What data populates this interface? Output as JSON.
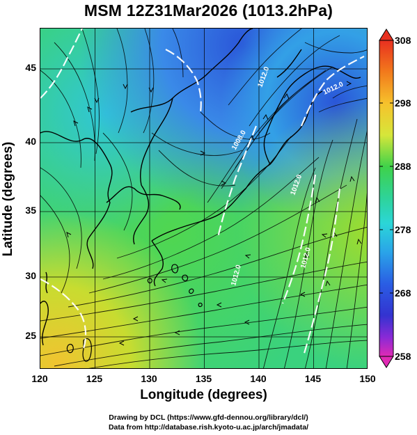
{
  "title": "MSM 12Z31Mar2026 (1013.2hPa)",
  "map": {
    "x_axis": {
      "label": "Longitude (degrees)",
      "min": 120,
      "max": 150,
      "ticks": [
        "120",
        "125",
        "130",
        "135",
        "140",
        "145",
        "150"
      ]
    },
    "y_axis": {
      "label": "Latitude  (degrees)",
      "min": 22.4,
      "max": 47.9,
      "ticks": [
        "45",
        "40",
        "35",
        "30",
        "25"
      ]
    },
    "grid": true,
    "contours": [
      "1008.0",
      "1012.0",
      "1012.0",
      "1012.0",
      "1012.0",
      "1012.0"
    ],
    "field_colors": {
      "cold": "#2a55d8",
      "cool": "#32c8e6",
      "mid": "#2fd47a",
      "warm": "#8fdc2e",
      "hot": "#f0c430"
    }
  },
  "colorbar": {
    "labels": [
      "308",
      "298",
      "288",
      "278",
      "268",
      "258"
    ],
    "colors": [
      "#e83020",
      "#f27a1c",
      "#f6c22c",
      "#d6e63a",
      "#9be03a",
      "#3fd24a",
      "#2ed39a",
      "#2bd6d8",
      "#2aa4e8",
      "#2a5ee4",
      "#3333d0",
      "#8a2ad6",
      "#e02ab4"
    ]
  },
  "footer": {
    "line1": "Drawing by DCL (https://www.gfd-dennou.org/library/dcl/)",
    "line2": "Data from http://database.rish.kyoto-u.ac.jp/arch/jmadata/"
  }
}
